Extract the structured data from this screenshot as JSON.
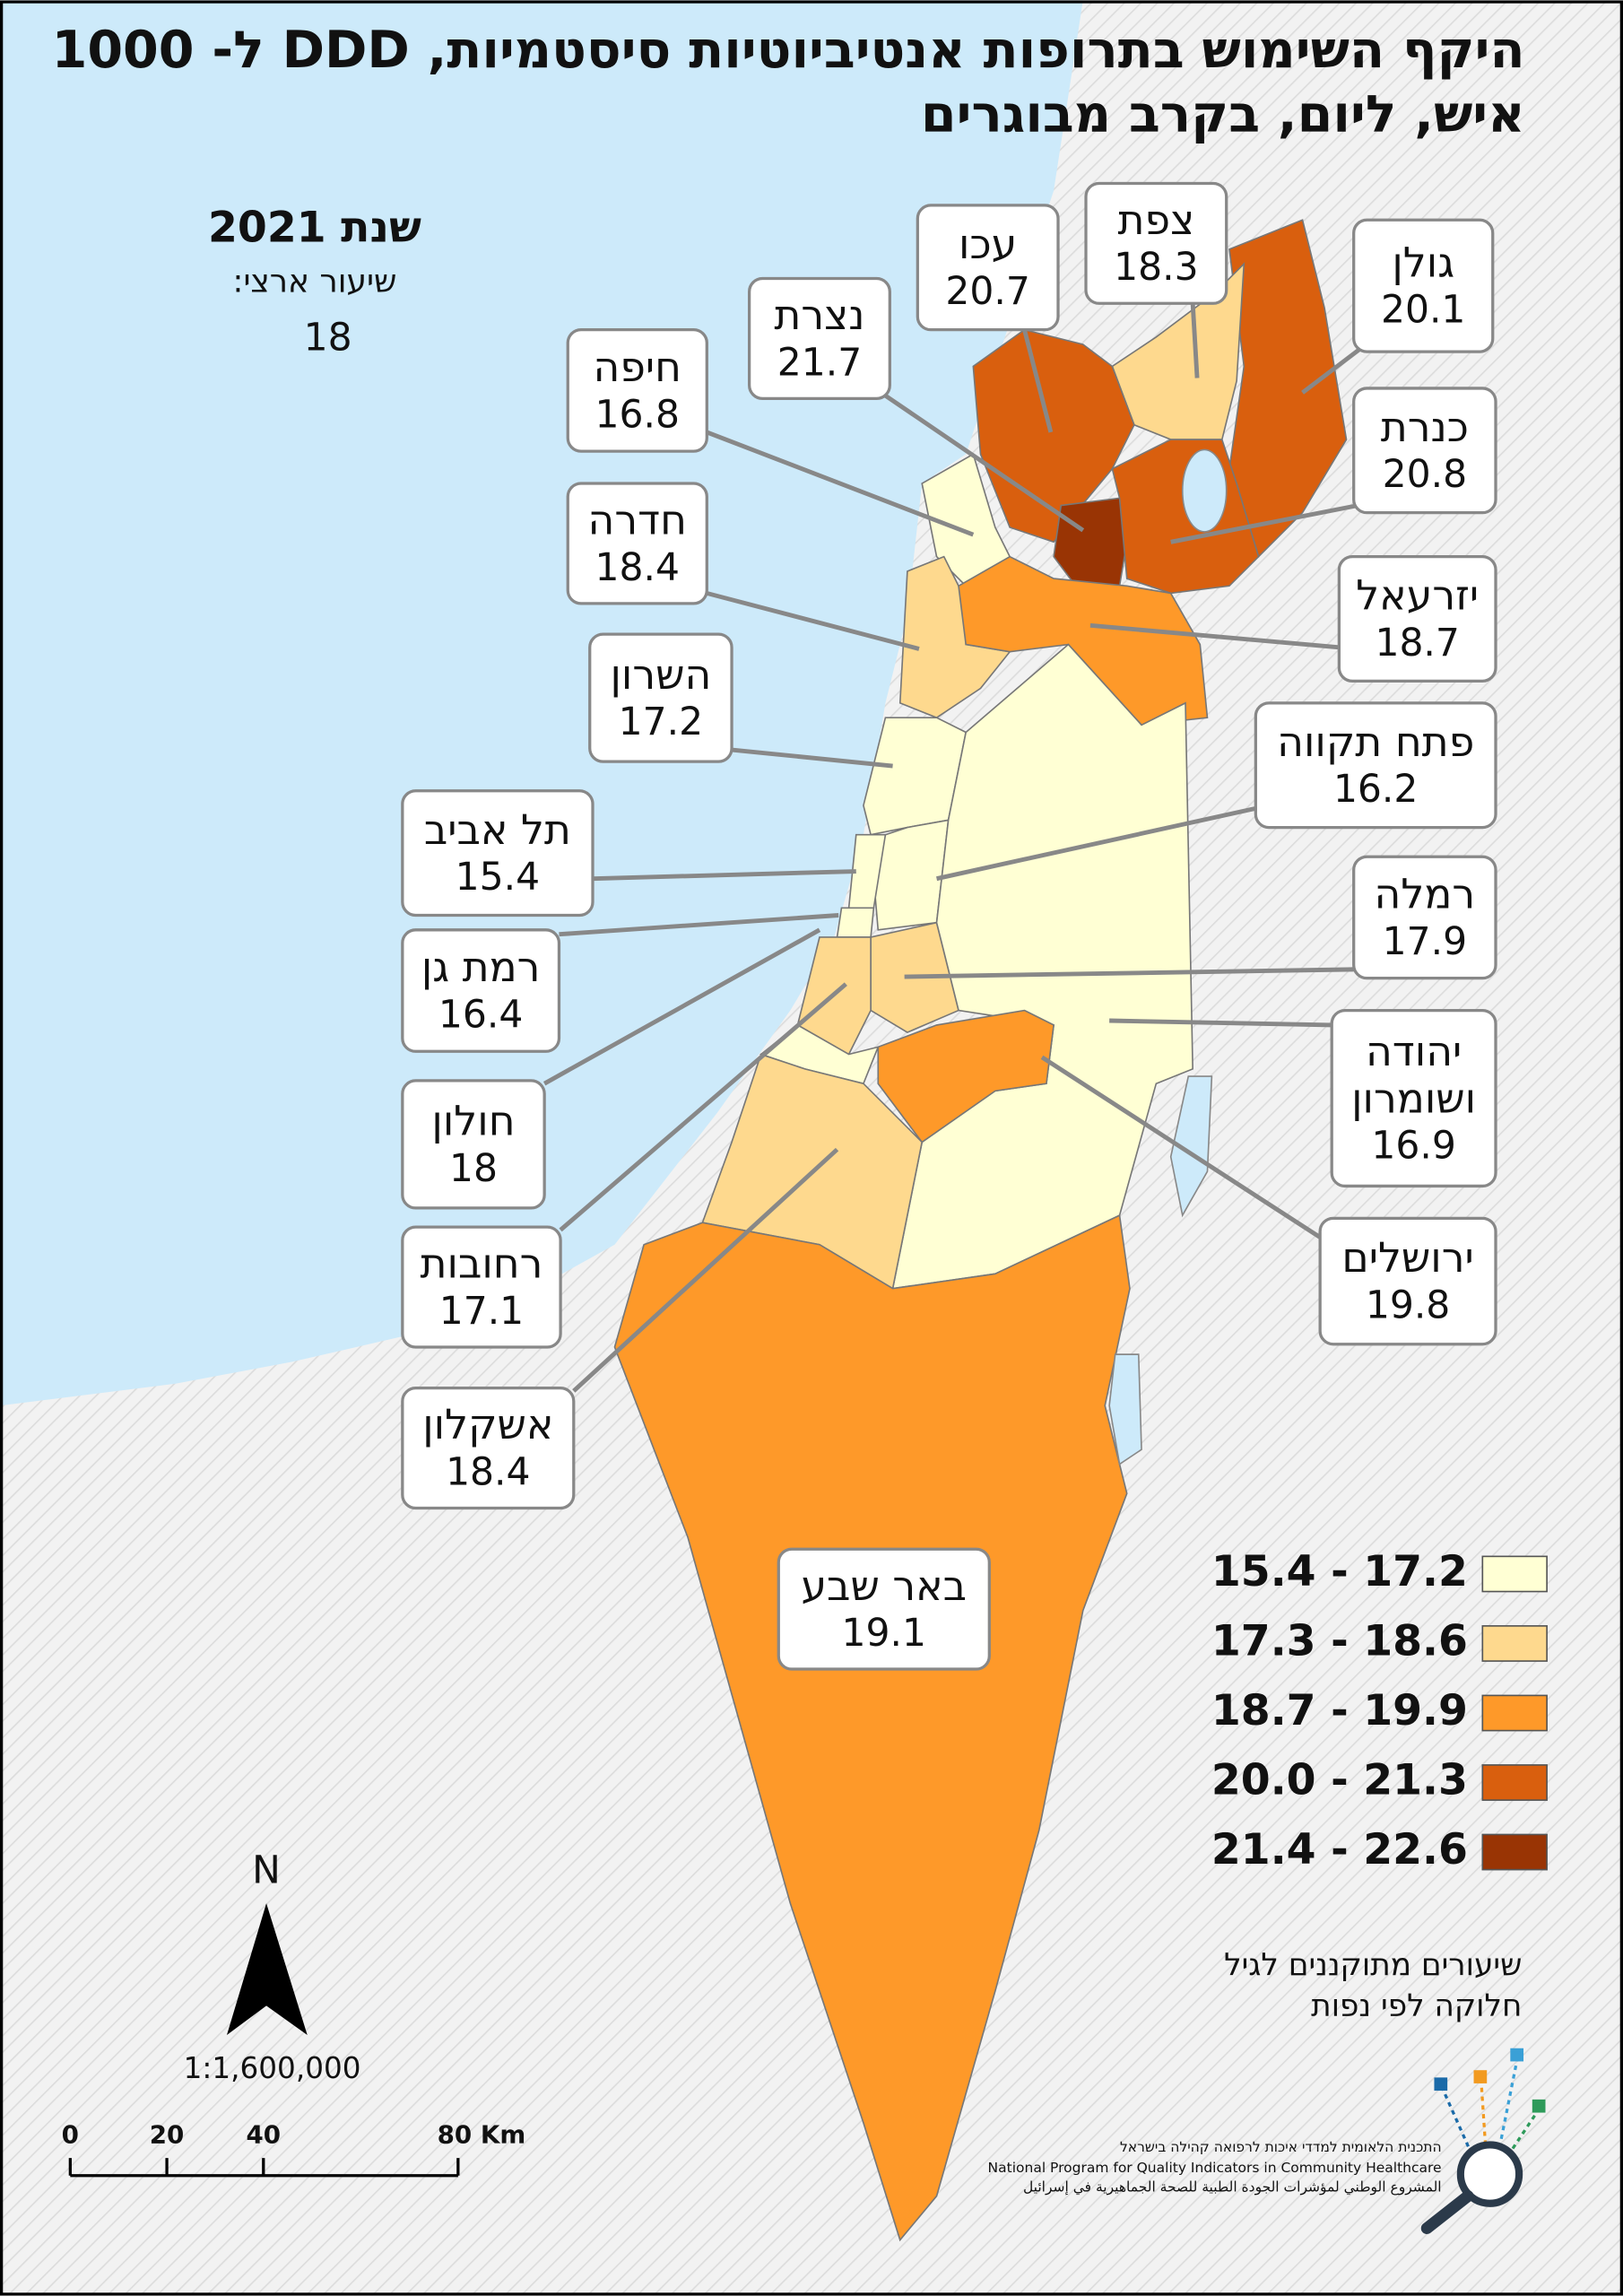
{
  "title": [
    "היקף השימוש בתרופות אנטיביוטיות סיסטמיות, DDD ל- 1000",
    "איש, ליום, בקרב מבוגרים"
  ],
  "year_label": "שנת 2021",
  "national_rate_label": "שיעור ארצי:",
  "national_rate": 18,
  "districts": [
    {
      "name": [
        "גולן"
      ],
      "value": 20.1
    },
    {
      "name": [
        "צפת"
      ],
      "value": 18.3
    },
    {
      "name": [
        "עכו"
      ],
      "value": 20.7
    },
    {
      "name": [
        "נצרת"
      ],
      "value": 21.7
    },
    {
      "name": [
        "חיפה"
      ],
      "value": 16.8
    },
    {
      "name": [
        "כנרת"
      ],
      "value": 20.8
    },
    {
      "name": [
        "חדרה"
      ],
      "value": 18.4
    },
    {
      "name": [
        "יזרעאל"
      ],
      "value": 18.7
    },
    {
      "name": [
        "השרון"
      ],
      "value": 17.2
    },
    {
      "name": [
        "פתח תקווה"
      ],
      "value": 16.2
    },
    {
      "name": [
        "תל אביב"
      ],
      "value": 15.4
    },
    {
      "name": [
        "רמלה"
      ],
      "value": 17.9
    },
    {
      "name": [
        "רמת גן"
      ],
      "value": 16.4
    },
    {
      "name": [
        "יהודה",
        "ושומרון"
      ],
      "value": 16.9
    },
    {
      "name": [
        "חולון"
      ],
      "value": 18
    },
    {
      "name": [
        "ירושלים"
      ],
      "value": 19.8
    },
    {
      "name": [
        "רחובות"
      ],
      "value": 17.1
    },
    {
      "name": [
        "אשקלון"
      ],
      "value": 18.4
    },
    {
      "name": [
        "באר שבע"
      ],
      "value": 19.1
    }
  ],
  "legend": [
    {
      "label": "15.4 - 17.2",
      "color": "#ffffd4"
    },
    {
      "label": "17.3 - 18.6",
      "color": "#fed98e"
    },
    {
      "label": "18.7 - 19.9",
      "color": "#fe9929"
    },
    {
      "label": "20.0 - 21.3",
      "color": "#d95f0e"
    },
    {
      "label": "21.4 - 22.6",
      "color": "#993404"
    }
  ],
  "note": [
    "שיעורים מתוקננים לגיל",
    "חלוקה לפי נפות"
  ],
  "north": "N",
  "scale_ratio": "1:1,600,000",
  "scale_bar": [
    0,
    20,
    40,
    "80 Km"
  ],
  "logo": [
    "התכנית הלאומית למדדי איכות לרפואה קהילה בישראל",
    "National Program for Quality Indicators in Community Healthcare",
    "المشروع الوطني لمؤشرات الجودة الطبية للصحة الجماهيرية في إسرائيل"
  ]
}
